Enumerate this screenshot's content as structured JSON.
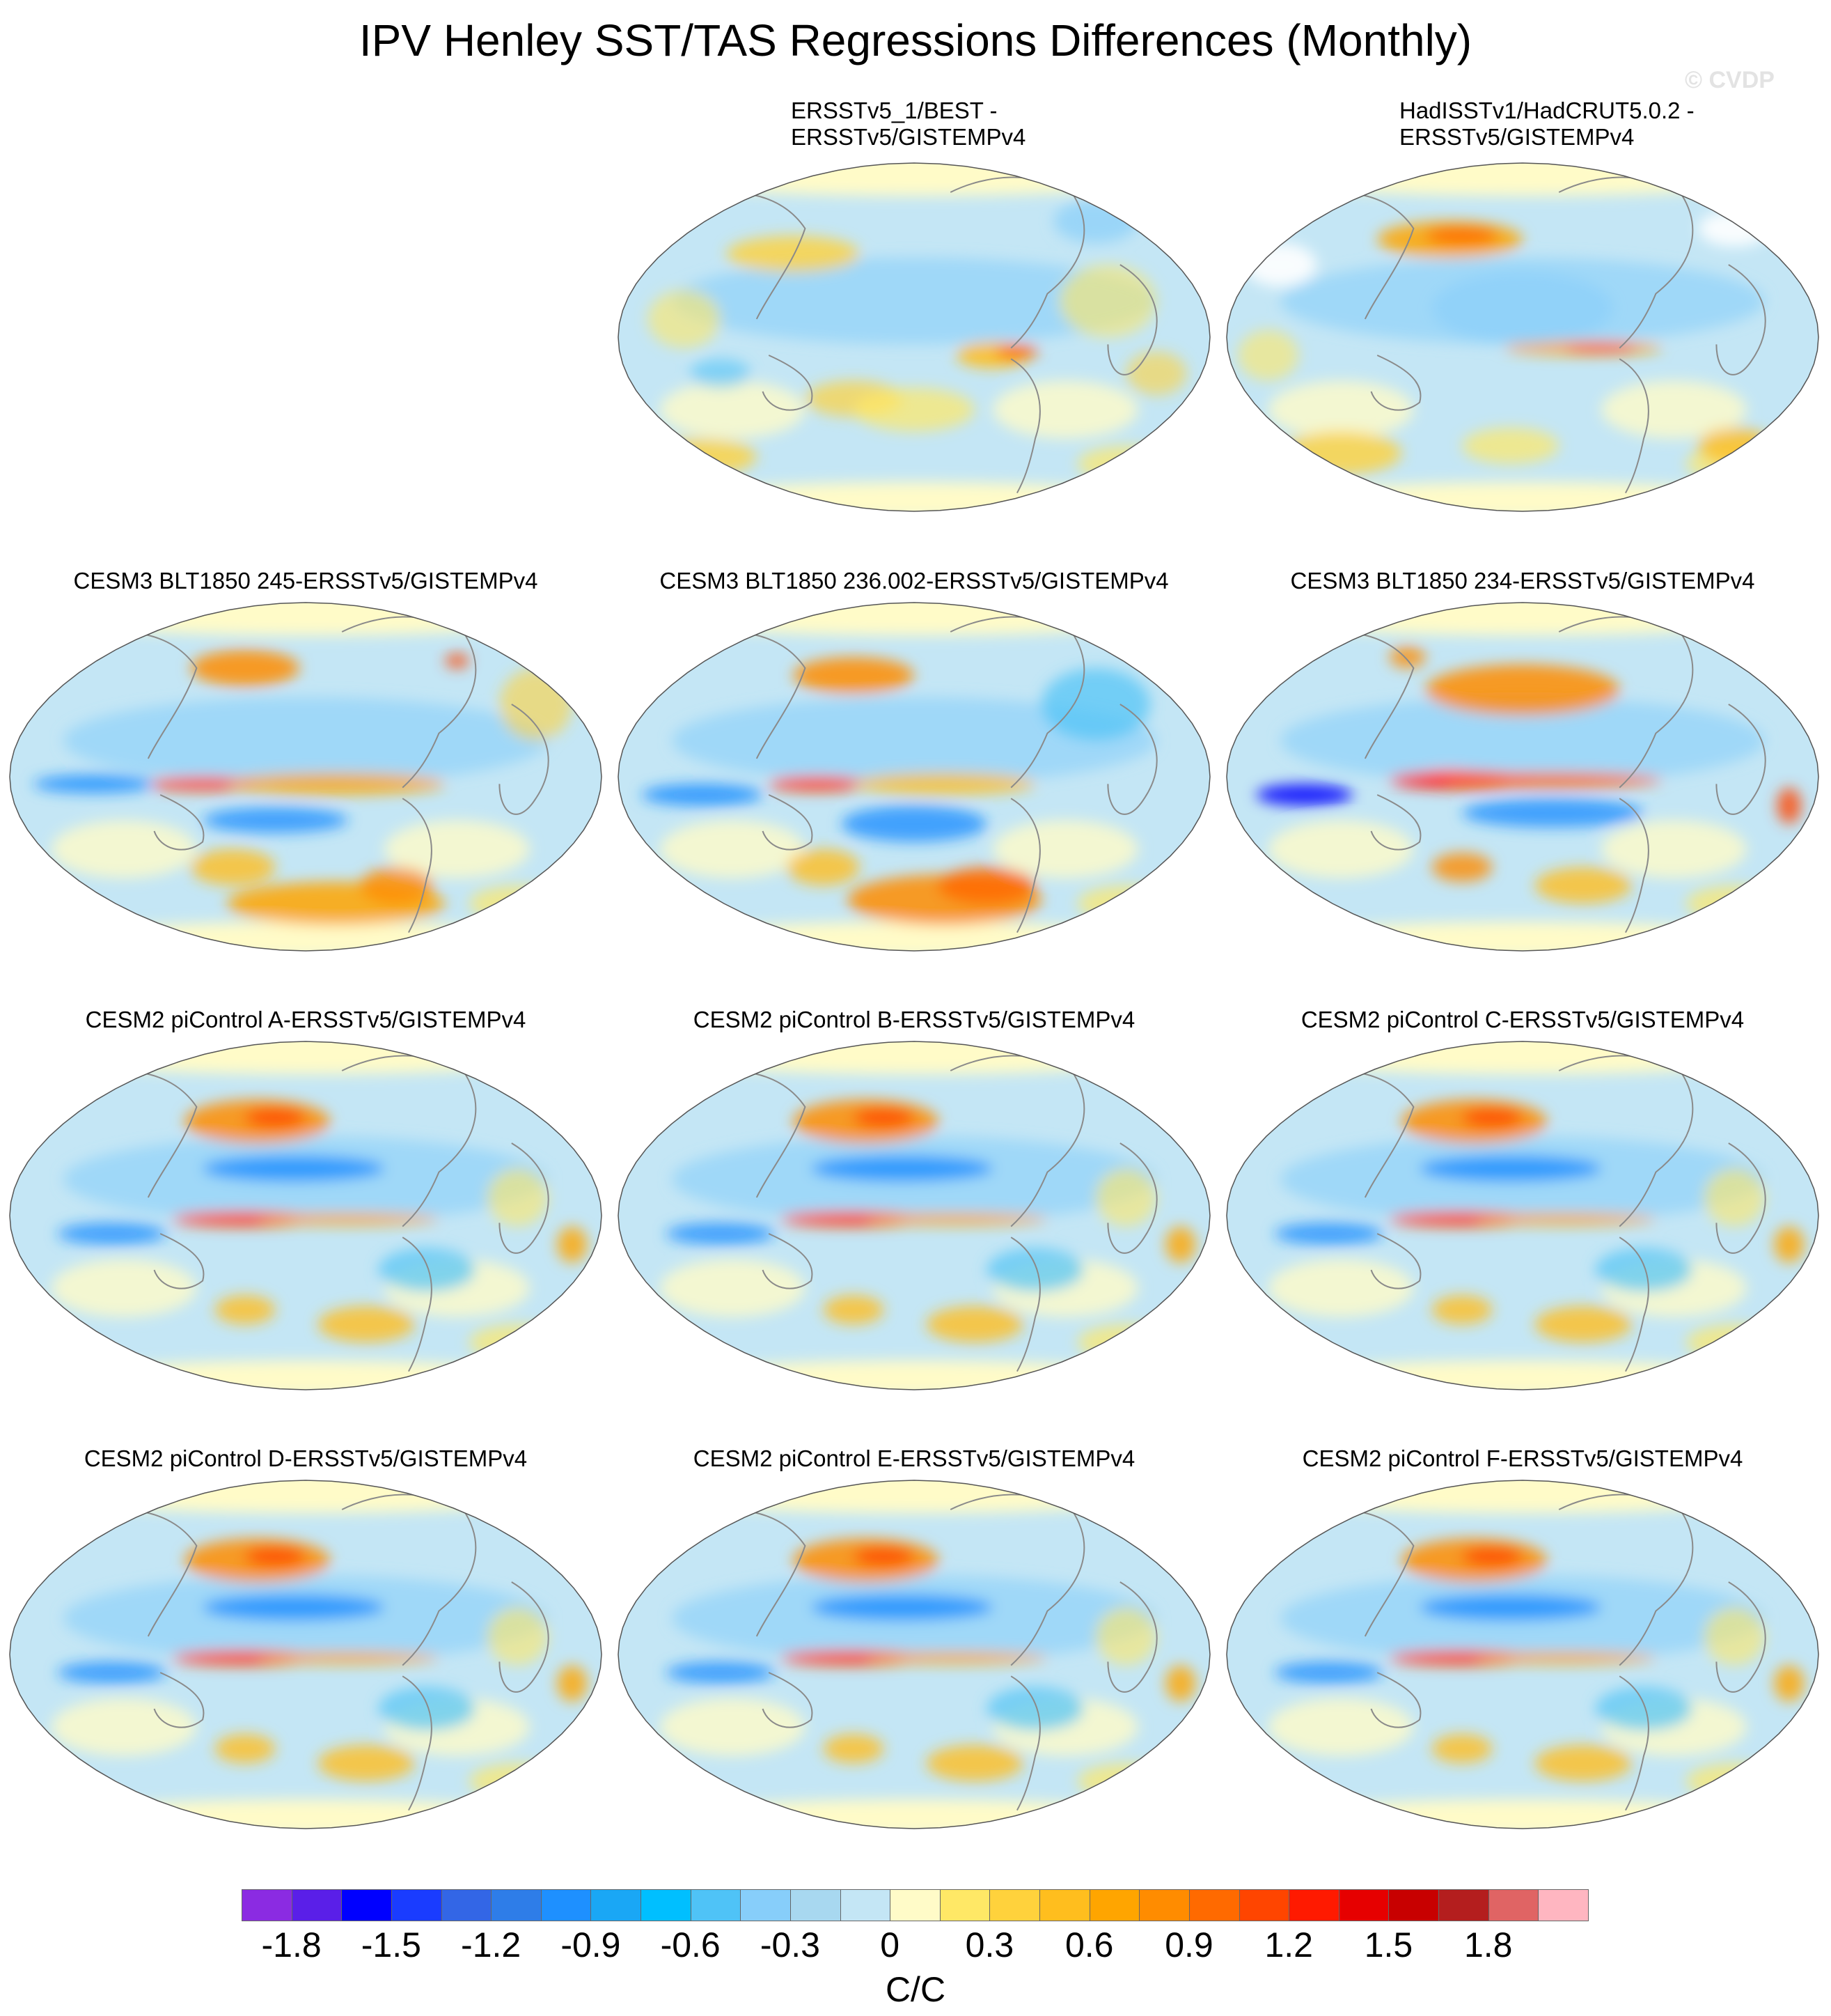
{
  "title": "IPV Henley SST/TAS Regressions Differences (Monthly)",
  "copyright": "© CVDP",
  "panels": [
    {
      "label_line1": "ERSSTv5_1/BEST -",
      "label_line2": "ERSSTv5/GISTEMPv4",
      "pattern": "obs1"
    },
    {
      "label_line1": "HadISSTv1/HadCRUT5.0.2 -",
      "label_line2": "ERSSTv5/GISTEMPv4",
      "pattern": "obs2"
    },
    {
      "label": "CESM3 BLT1850 245-ERSSTv5/GISTEMPv4",
      "pattern": "cesm3a"
    },
    {
      "label": "CESM3 BLT1850 236.002-ERSSTv5/GISTEMPv4",
      "pattern": "cesm3b"
    },
    {
      "label": "CESM3 BLT1850 234-ERSSTv5/GISTEMPv4",
      "pattern": "cesm3c"
    },
    {
      "label": "CESM2 piControl A-ERSSTv5/GISTEMPv4",
      "pattern": "cesm2"
    },
    {
      "label": "CESM2 piControl B-ERSSTv5/GISTEMPv4",
      "pattern": "cesm2"
    },
    {
      "label": "CESM2 piControl C-ERSSTv5/GISTEMPv4",
      "pattern": "cesm2"
    },
    {
      "label": "CESM2 piControl D-ERSSTv5/GISTEMPv4",
      "pattern": "cesm2"
    },
    {
      "label": "CESM2 piControl E-ERSSTv5/GISTEMPv4",
      "pattern": "cesm2"
    },
    {
      "label": "CESM2 piControl F-ERSSTv5/GISTEMPv4",
      "pattern": "cesm2"
    }
  ],
  "colorbar": {
    "unit": "C/C",
    "tick_labels": [
      "-1.8",
      "-1.5",
      "-1.2",
      "-0.9",
      "-0.6",
      "-0.3",
      "0",
      "0.3",
      "0.6",
      "0.9",
      "1.2",
      "1.5",
      "1.8"
    ],
    "colors": [
      "#8b2be2",
      "#5a1fe8",
      "#0000ff",
      "#1a3cff",
      "#3366e6",
      "#2e7de8",
      "#1e90ff",
      "#1aa7f5",
      "#00bfff",
      "#4fc3f7",
      "#87cefa",
      "#a8d8f0",
      "#c4e6f5",
      "#fffbc8",
      "#ffe866",
      "#ffd23c",
      "#ffbe1e",
      "#ffa500",
      "#ff8c00",
      "#ff6a00",
      "#ff4500",
      "#ff1a00",
      "#e60000",
      "#c80000",
      "#b41e1e",
      "#e06464",
      "#ffb6c1"
    ]
  }
}
